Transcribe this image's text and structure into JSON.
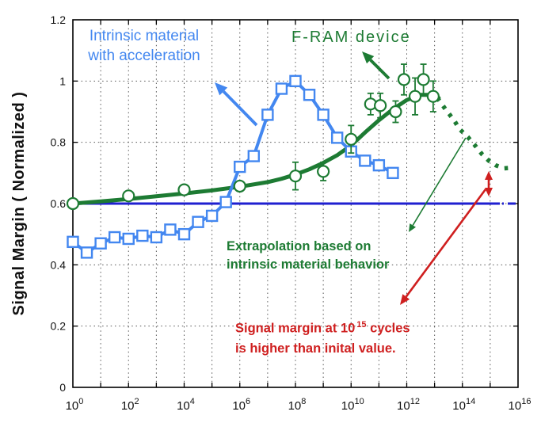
{
  "figure": {
    "background": "#ffffff",
    "axis_color": "#000000",
    "grid_color": "#555555"
  },
  "y_axis": {
    "label": "Signal Margin ( Normalized )",
    "tick_values": [
      0,
      0.2,
      0.4,
      0.6,
      0.8,
      1,
      1.2
    ],
    "tick_labels": [
      "0",
      "0.2",
      "0.4",
      "0.6",
      "0.8",
      "1",
      "1.2"
    ],
    "range": [
      0,
      1.2
    ]
  },
  "x_axis": {
    "scale": "log",
    "base_label": "10",
    "labeled_exponents": [
      0,
      2,
      4,
      6,
      8,
      10,
      12,
      14,
      16
    ],
    "range_exponents": [
      0,
      16
    ],
    "gridline_every_decade": true
  },
  "chart_data": {
    "type": "line",
    "title": "",
    "xlabel": "",
    "ylabel": "Signal Margin ( Normalized )",
    "x_scale": "log",
    "xlim_exponents": [
      0,
      16
    ],
    "ylim": [
      0,
      1.2
    ],
    "grid": "dotted",
    "legend_position": "none (inline text labels with arrows)",
    "series": [
      {
        "name": "Intrinsic material with acceleration",
        "style": "thick line with open square markers",
        "color": "#4387f0",
        "x_exponents": [
          0,
          0.5,
          1,
          1.5,
          2,
          2.5,
          3,
          3.5,
          4,
          4.5,
          5,
          5.5,
          6,
          6.5,
          7,
          7.5,
          8,
          8.5,
          9,
          9.5,
          10,
          10.5,
          11,
          11.5
        ],
        "values": [
          0.475,
          0.44,
          0.47,
          0.49,
          0.485,
          0.495,
          0.49,
          0.515,
          0.5,
          0.54,
          0.56,
          0.605,
          0.72,
          0.755,
          0.89,
          0.975,
          1.0,
          0.955,
          0.89,
          0.815,
          0.77,
          0.74,
          0.725,
          0.7
        ]
      },
      {
        "name": "F-RAM device",
        "style": "open circle markers with error bars",
        "color": "#1d7b33",
        "x_exponents": [
          0,
          2,
          4,
          6,
          8,
          9,
          10,
          10.7,
          11.05,
          11.6,
          11.9,
          12.3,
          12.6,
          12.95
        ],
        "values": [
          0.6,
          0.625,
          0.645,
          0.657,
          0.69,
          0.705,
          0.81,
          0.925,
          0.92,
          0.9,
          1.005,
          0.95,
          1.005,
          0.95
        ],
        "errors": [
          0,
          0,
          0,
          0,
          0.045,
          0.03,
          0.045,
          0.035,
          0.04,
          0.035,
          0.05,
          0.06,
          0.05,
          0.05
        ]
      },
      {
        "name": "F-RAM trend line",
        "style": "thick solid line",
        "color": "#1d7b33",
        "x_exponents": [
          0,
          1,
          2,
          3,
          4,
          5,
          6,
          7,
          7.5,
          8,
          8.5,
          9,
          9.5,
          10,
          10.5,
          11,
          11.5,
          12,
          12.5,
          13,
          13.15
        ],
        "values": [
          0.6,
          0.607,
          0.615,
          0.624,
          0.633,
          0.643,
          0.655,
          0.67,
          0.681,
          0.695,
          0.712,
          0.733,
          0.758,
          0.79,
          0.832,
          0.872,
          0.908,
          0.938,
          0.955,
          0.955,
          0.945
        ]
      },
      {
        "name": "Extrapolation based on intrinsic material behavior",
        "style": "thick dotted line",
        "color": "#1d7b33",
        "x_exponents": [
          13.1,
          13.4,
          13.7,
          13.9,
          14.2,
          14.45,
          14.7,
          14.95,
          15.2,
          15.5,
          15.8
        ],
        "values": [
          0.945,
          0.907,
          0.872,
          0.843,
          0.817,
          0.79,
          0.762,
          0.74,
          0.725,
          0.715,
          0.717
        ]
      },
      {
        "name": "Initial value reference line",
        "style": "horizontal solid line with dash-dot end",
        "color": "#1f1fd0",
        "value": 0.6,
        "x_exponents": [
          0,
          16
        ]
      }
    ]
  },
  "annotations": {
    "intrinsic": {
      "line1": "Intrinsic material",
      "line2": "with acceleration",
      "color": "#4387f0"
    },
    "fram": {
      "text": "F-RAM device",
      "color": "#1d7b33"
    },
    "extrap": {
      "line1": "Extrapolation based on",
      "line2": "intrinsic material behavior",
      "color": "#1d7b33"
    },
    "note": {
      "line1_pre": "Signal margin at 10",
      "line1_sup": "15",
      "line1_post": " cycles",
      "line2": "is higher than inital value.",
      "color": "#cf1f1f"
    }
  }
}
